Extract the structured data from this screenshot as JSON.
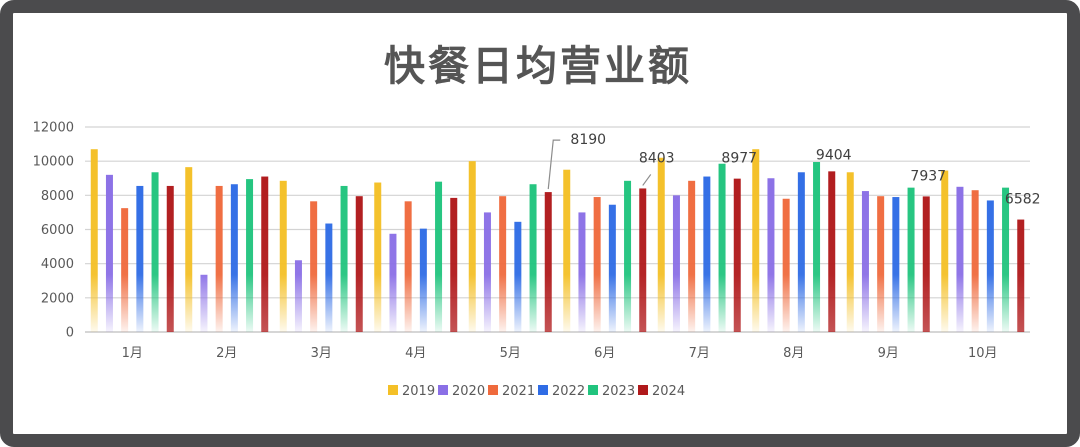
{
  "chart_data": {
    "type": "bar",
    "title": "快餐日均营业额",
    "categories": [
      "1月",
      "2月",
      "3月",
      "4月",
      "5月",
      "6月",
      "7月",
      "8月",
      "9月",
      "10月"
    ],
    "ylim": [
      0,
      12000
    ],
    "yticks": [
      0,
      2000,
      4000,
      6000,
      8000,
      10000,
      12000
    ],
    "grid": true,
    "legend_position": "bottom",
    "series": [
      {
        "name": "2019",
        "color": "#f4c027",
        "values": [
          10700,
          9650,
          8850,
          8750,
          10000,
          9500,
          10200,
          10700,
          9350,
          9450
        ]
      },
      {
        "name": "2020",
        "color": "#8a6fe6",
        "values": [
          9200,
          3350,
          4200,
          5750,
          7000,
          7000,
          8000,
          9000,
          8250,
          8500
        ]
      },
      {
        "name": "2021",
        "color": "#ef6a3d",
        "values": [
          7250,
          8550,
          7650,
          7650,
          7950,
          7900,
          8850,
          7800,
          7950,
          8300
        ]
      },
      {
        "name": "2022",
        "color": "#2f6ce5",
        "values": [
          8550,
          8650,
          6350,
          6050,
          6450,
          7450,
          9100,
          9350,
          7900,
          7700
        ]
      },
      {
        "name": "2023",
        "color": "#21c47e",
        "values": [
          9350,
          8950,
          8550,
          8800,
          8650,
          8850,
          9850,
          9950,
          8450,
          8450
        ]
      },
      {
        "name": "2024",
        "color": "#b0191b",
        "values": [
          8550,
          9100,
          7950,
          7850,
          8190,
          8403,
          8977,
          9404,
          7937,
          6582
        ]
      }
    ],
    "annotations": [
      {
        "text": "8190",
        "month": "5月",
        "series": "2024"
      },
      {
        "text": "8403",
        "month": "6月",
        "series": "2024"
      },
      {
        "text": "8977",
        "month": "7月",
        "series": "2024"
      },
      {
        "text": "9404",
        "month": "8月",
        "series": "2024"
      },
      {
        "text": "7937",
        "month": "9月",
        "series": "2024"
      },
      {
        "text": "6582",
        "month": "10月",
        "series": "2024"
      }
    ]
  }
}
